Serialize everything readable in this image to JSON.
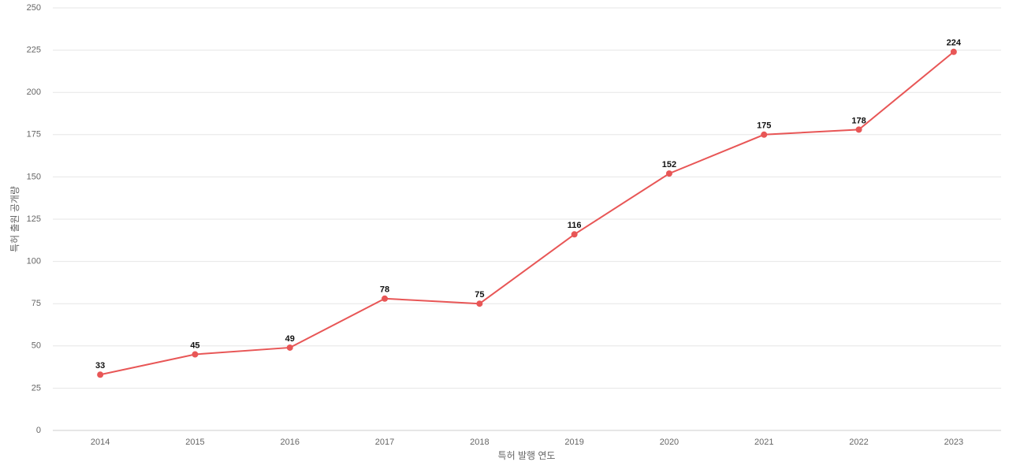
{
  "chart_data": {
    "type": "line",
    "x_label": "특허 발행 연도",
    "y_label": "특허 출원 공개량",
    "categories": [
      "2014",
      "2015",
      "2016",
      "2017",
      "2018",
      "2019",
      "2020",
      "2021",
      "2022",
      "2023"
    ],
    "values": [
      33,
      45,
      49,
      78,
      75,
      116,
      152,
      175,
      178,
      224
    ],
    "color": "#e85656",
    "ylim": [
      0,
      250
    ],
    "yticks": [
      0,
      25,
      50,
      75,
      100,
      125,
      150,
      175,
      200,
      225,
      250
    ],
    "grid": true,
    "data_labels": true
  }
}
